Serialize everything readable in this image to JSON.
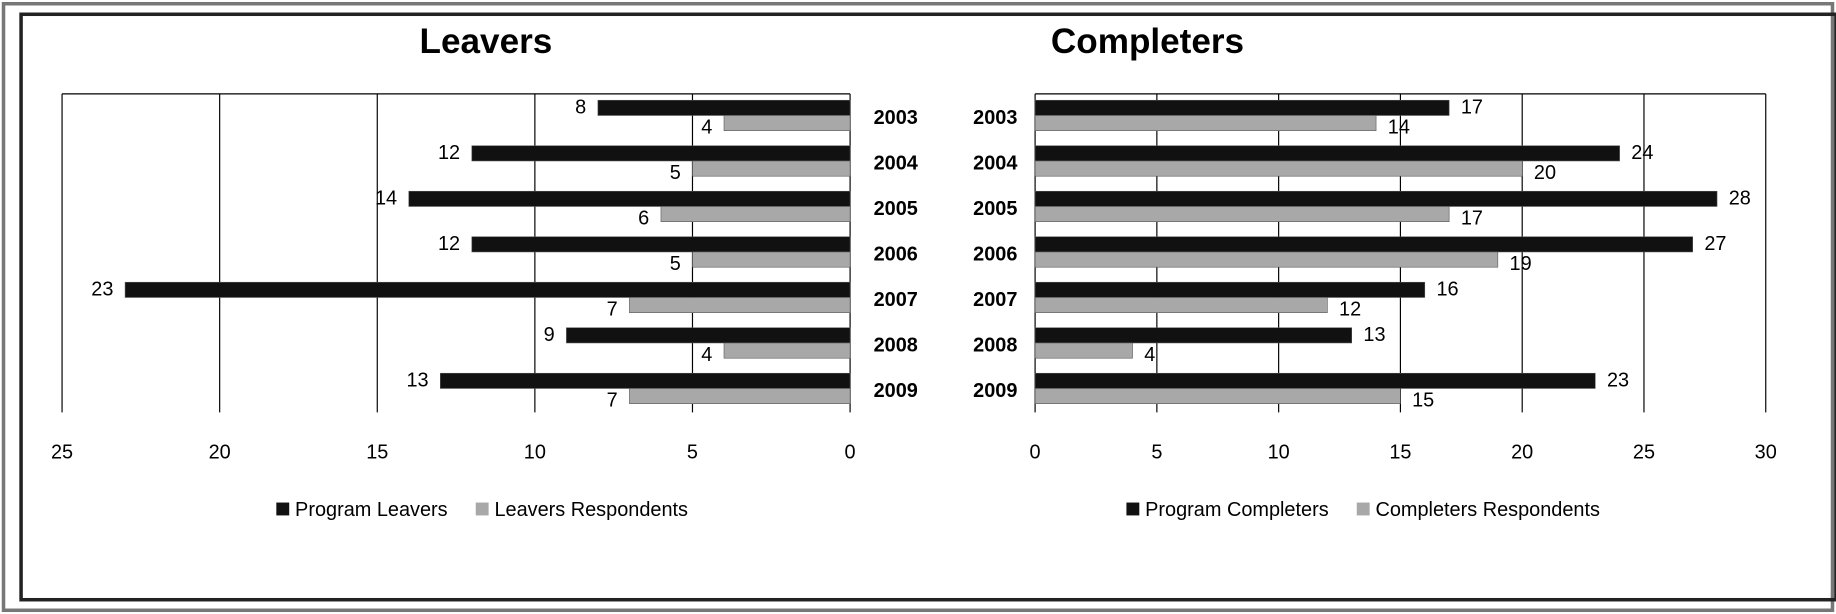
{
  "chart_data": [
    {
      "type": "bar",
      "orientation": "horizontal",
      "title": "Leavers",
      "categories": [
        "2003",
        "2004",
        "2005",
        "2006",
        "2007",
        "2008",
        "2009"
      ],
      "series": [
        {
          "name": "Program Leavers",
          "color": "#111111",
          "values": [
            8,
            12,
            14,
            12,
            23,
            9,
            13
          ]
        },
        {
          "name": "Leavers Respondents",
          "color": "#a8a8a8",
          "values": [
            4,
            5,
            6,
            5,
            7,
            4,
            7
          ]
        }
      ],
      "xlim": [
        25,
        0
      ],
      "xticks": [
        25,
        20,
        15,
        10,
        5,
        0
      ],
      "grid": true,
      "legend": "bottom"
    },
    {
      "type": "bar",
      "orientation": "horizontal",
      "title": "Completers",
      "categories": [
        "2003",
        "2004",
        "2005",
        "2006",
        "2007",
        "2008",
        "2009"
      ],
      "series": [
        {
          "name": "Program Completers",
          "color": "#111111",
          "values": [
            17,
            24,
            28,
            27,
            16,
            13,
            23
          ]
        },
        {
          "name": "Completers Respondents",
          "color": "#a8a8a8",
          "values": [
            14,
            20,
            17,
            19,
            12,
            4,
            15
          ]
        }
      ],
      "xlim": [
        0,
        30
      ],
      "xticks": [
        0,
        5,
        10,
        15,
        20,
        25,
        30
      ],
      "grid": true,
      "legend": "bottom"
    }
  ]
}
